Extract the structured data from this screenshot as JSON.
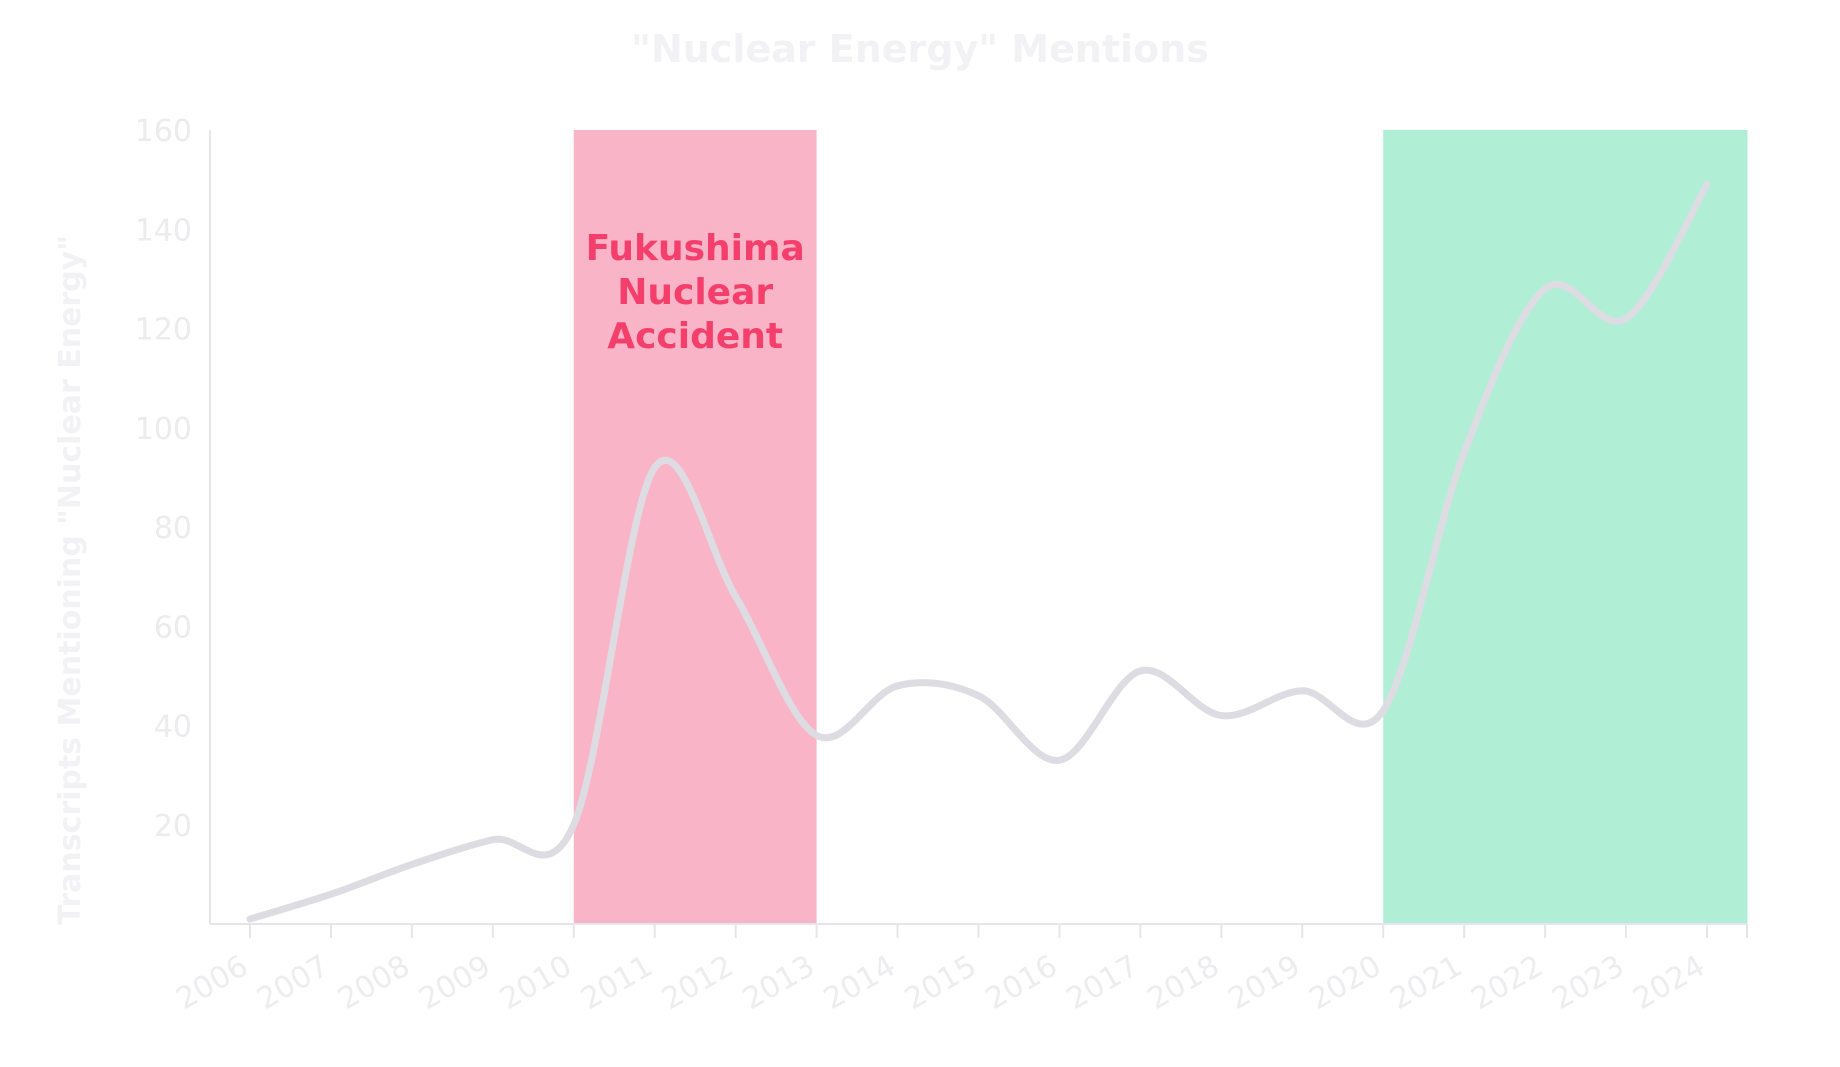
{
  "chart_data": {
    "type": "line",
    "title": "\"Nuclear Energy\" Mentions",
    "xlabel": "",
    "ylabel": "Transcripts Mentioning \"Nuclear Energy\"",
    "ylim": [
      0,
      160
    ],
    "yticks": [
      20,
      40,
      60,
      80,
      100,
      120,
      140,
      160
    ],
    "xlim": [
      2006,
      2024.5
    ],
    "categories": [
      "2006",
      "2007",
      "2008",
      "2009",
      "2010",
      "2011",
      "2012",
      "2013",
      "2014",
      "2015",
      "2016",
      "2017",
      "2018",
      "2019",
      "2020",
      "2021",
      "2022",
      "2023",
      "2024"
    ],
    "series": [
      {
        "name": "",
        "color": "#dcdce2",
        "x": [
          2006,
          2007,
          2008,
          2009,
          2010,
          2011,
          2012,
          2013,
          2014,
          2015,
          2016,
          2017,
          2018,
          2019,
          2020,
          2021,
          2022,
          2023,
          2024
        ],
        "values": [
          1,
          6,
          12,
          17,
          20,
          92,
          66,
          38,
          48,
          46,
          33,
          51,
          42,
          47,
          43,
          95,
          128,
          122,
          149
        ]
      }
    ],
    "highlight_bands": [
      {
        "x_start": 2010,
        "x_end": 2013,
        "color": "#f9b5c7",
        "label": "Fukushima Nuclear Accident",
        "label_lines": [
          "Fukushima",
          "Nuclear",
          "Accident"
        ],
        "label_color": "#f43f6c"
      },
      {
        "x_start": 2020,
        "x_end": 2024.5,
        "color": "#b0efd5",
        "label": "",
        "label_lines": [],
        "label_color": ""
      }
    ],
    "grid": false,
    "legend": "none",
    "colors": {
      "title": "#f2f2f4",
      "axis": "#e6e6ea",
      "tick_label": "#ececef"
    }
  }
}
